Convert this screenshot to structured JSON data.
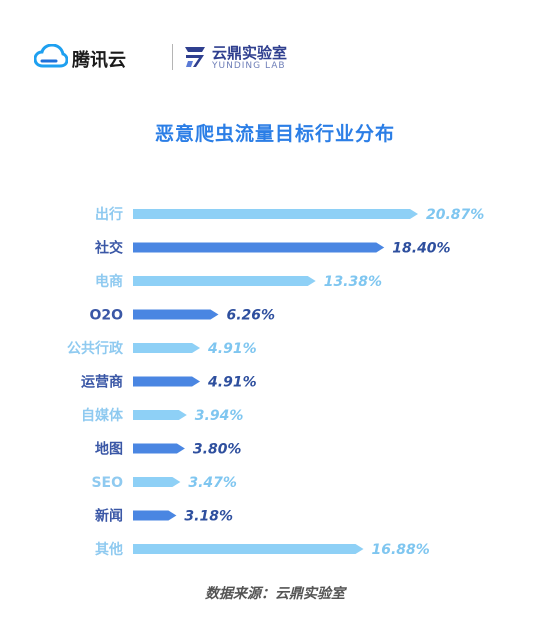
{
  "header": {
    "brand_tencent": "腾讯云",
    "brand_yunding_cn": "云鼎实验室",
    "brand_yunding_en": "YUNDING LAB"
  },
  "colors": {
    "light_bar": "#8ed0f6",
    "dark_bar": "#4a86e2",
    "title": "#2b7ee6",
    "light_label": "#8fcaf0",
    "dark_label": "#3a57a6"
  },
  "chart_data": {
    "type": "bar",
    "orientation": "horizontal",
    "title": "恶意爬虫流量目标行业分布",
    "categories": [
      "出行",
      "社交",
      "电商",
      "O2O",
      "公共行政",
      "运营商",
      "自媒体",
      "地图",
      "SEO",
      "新闻",
      "其他"
    ],
    "values": [
      20.87,
      18.4,
      13.38,
      6.26,
      4.91,
      4.91,
      3.94,
      3.8,
      3.47,
      3.18,
      16.88
    ],
    "value_labels": [
      "20.87%",
      "18.40%",
      "13.38%",
      "6.26%",
      "4.91%",
      "4.91%",
      "3.94%",
      "3.80%",
      "3.47%",
      "3.18%",
      "16.88%"
    ],
    "bar_style": [
      "light",
      "dark",
      "light",
      "dark",
      "light",
      "dark",
      "light",
      "dark",
      "light",
      "dark",
      "light"
    ],
    "grid": false,
    "legend": "none"
  },
  "source": "数据来源：云鼎实验室"
}
